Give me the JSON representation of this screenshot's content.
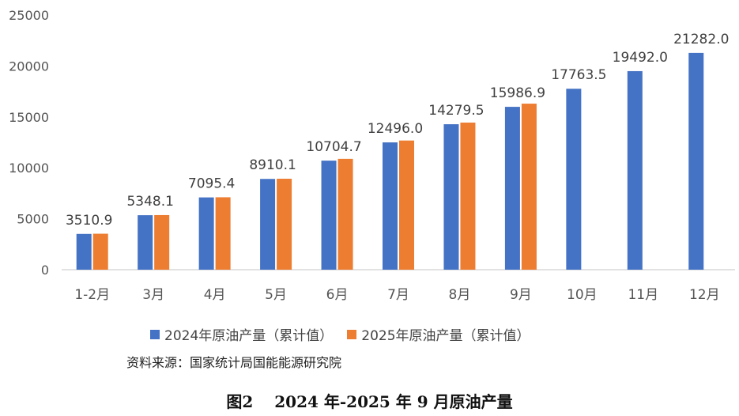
{
  "chart_data": {
    "type": "bar",
    "title": "",
    "xlabel": "",
    "ylabel": "",
    "ylim": [
      0,
      25000
    ],
    "yticks": [
      0,
      5000,
      10000,
      15000,
      20000,
      25000
    ],
    "grid": false,
    "legend_position": "bottom",
    "categories": [
      "1-2月",
      "3月",
      "4月",
      "5月",
      "6月",
      "7月",
      "8月",
      "9月",
      "10月",
      "11月",
      "12月"
    ],
    "series": [
      {
        "name": "2024年原油产量（累计值）",
        "color": "#4472C4",
        "values": [
          3510.9,
          5348.1,
          7095.4,
          8910.1,
          10704.7,
          12496.0,
          14279.5,
          15986.9,
          17763.5,
          19492.0,
          21282.0
        ],
        "labels": [
          "3510.9",
          "5348.1",
          "7095.4",
          "8910.1",
          "10704.7",
          "12496.0",
          "14279.5",
          "15986.9",
          "17763.5",
          "19492.0",
          "21282.0"
        ]
      },
      {
        "name": "2025年原油产量（累计值）",
        "color": "#ED7D31",
        "values": [
          3530,
          5360,
          7110,
          8930,
          10880,
          12680,
          14440,
          16300,
          null,
          null,
          null
        ]
      }
    ]
  },
  "source": "资料来源：国家统计局国能能源研究院",
  "caption": "图2　 2024 年-2025 年 9 月原油产量"
}
